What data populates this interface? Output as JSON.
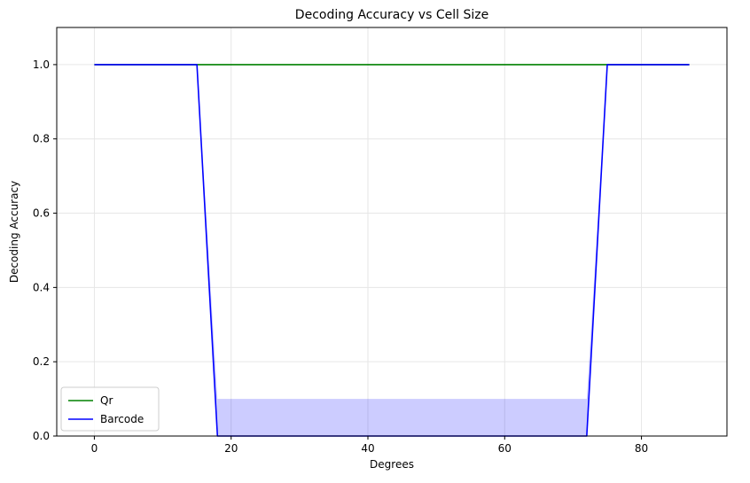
{
  "chart_data": {
    "type": "line",
    "title": "Decoding Accuracy vs Cell Size",
    "xlabel": "Degrees",
    "ylabel": "Decoding Accuracy",
    "xlim": [
      -5.5,
      92.5
    ],
    "ylim": [
      0.0,
      1.1
    ],
    "xticks": [
      0,
      20,
      40,
      60,
      80
    ],
    "yticks": [
      0.0,
      0.2,
      0.4,
      0.6,
      0.8,
      1.0
    ],
    "xtick_labels": [
      "0",
      "20",
      "40",
      "60",
      "80"
    ],
    "ytick_labels": [
      "0.0",
      "0.2",
      "0.4",
      "0.6",
      "0.8",
      "1.0"
    ],
    "grid": true,
    "legend": "lower-left",
    "series": [
      {
        "name": "Qr",
        "color": "#008000",
        "x": [
          0,
          3,
          6,
          9,
          12,
          15,
          18,
          21,
          24,
          27,
          30,
          33,
          36,
          39,
          42,
          45,
          48,
          51,
          54,
          57,
          60,
          63,
          66,
          69,
          72,
          75,
          78,
          81,
          84,
          87
        ],
        "y": [
          1,
          1,
          1,
          1,
          1,
          1,
          1,
          1,
          1,
          1,
          1,
          1,
          1,
          1,
          1,
          1,
          1,
          1,
          1,
          1,
          1,
          1,
          1,
          1,
          1,
          1,
          1,
          1,
          1,
          1
        ]
      },
      {
        "name": "Barcode",
        "color": "#0000ff",
        "x": [
          0,
          3,
          6,
          9,
          12,
          15,
          18,
          21,
          24,
          27,
          30,
          33,
          36,
          39,
          42,
          45,
          48,
          51,
          54,
          57,
          60,
          63,
          66,
          69,
          72,
          75,
          78,
          81,
          84,
          87
        ],
        "y": [
          1,
          1,
          1,
          1,
          1,
          1,
          0,
          0,
          0,
          0,
          0,
          0,
          0,
          0,
          0,
          0,
          0,
          0,
          0,
          0,
          0,
          0,
          0,
          0,
          0,
          1,
          1,
          1,
          1,
          1
        ],
        "band_upper": [
          1,
          1,
          1,
          1,
          1,
          1,
          0.1,
          0.1,
          0.1,
          0.1,
          0.1,
          0.1,
          0.1,
          0.1,
          0.1,
          0.1,
          0.1,
          0.1,
          0.1,
          0.1,
          0.1,
          0.1,
          0.1,
          0.1,
          0.1,
          1,
          1,
          1,
          1,
          1
        ],
        "band_lower": [
          1,
          1,
          1,
          1,
          1,
          1,
          0,
          0,
          0,
          0,
          0,
          0,
          0,
          0,
          0,
          0,
          0,
          0,
          0,
          0,
          0,
          0,
          0,
          0,
          0,
          1,
          1,
          1,
          1,
          1
        ],
        "band_color": "#0000ff"
      }
    ],
    "grid_color": "#e6e6e6"
  }
}
